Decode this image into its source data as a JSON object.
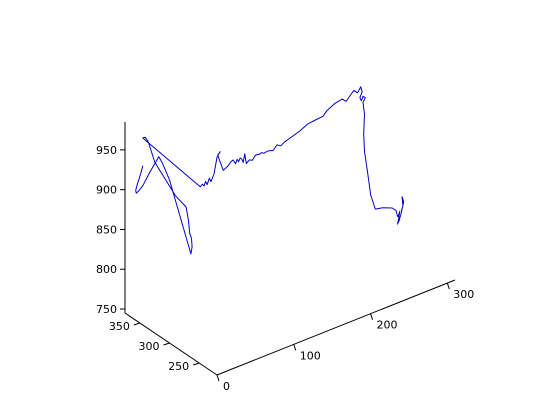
{
  "chart_data": {
    "type": "line",
    "projection": "3d",
    "title": "",
    "xlabel": "",
    "ylabel": "",
    "zlabel": "",
    "grid": false,
    "xlim": [
      0,
      310
    ],
    "ylim": [
      220,
      375
    ],
    "zlim": [
      745,
      985
    ],
    "x_ticks": [
      0,
      100,
      200,
      300
    ],
    "x_tick_labels": [
      "0",
      "100",
      "200",
      "300"
    ],
    "y_ticks": [
      250,
      300,
      350
    ],
    "y_tick_labels": [
      "250",
      "300",
      "350"
    ],
    "z_ticks": [
      750,
      800,
      850,
      900,
      950
    ],
    "z_tick_labels": [
      "750",
      "800",
      "850",
      "900",
      "950"
    ],
    "series": [
      {
        "color": "#0000cc",
        "points": [
          [
            302,
            300,
            795
          ],
          [
            304,
            300,
            800
          ],
          [
            303,
            300,
            812
          ],
          [
            305,
            300,
            805
          ],
          [
            301,
            300,
            789
          ],
          [
            298,
            300,
            783
          ],
          [
            300,
            300,
            795
          ],
          [
            298,
            300,
            790
          ],
          [
            300,
            300,
            785
          ],
          [
            297,
            300,
            780
          ],
          [
            299,
            300,
            788
          ],
          [
            297,
            300,
            790
          ],
          [
            295,
            300,
            798
          ],
          [
            290,
            300,
            803
          ],
          [
            278,
            300,
            808
          ],
          [
            268,
            300,
            810
          ],
          [
            262,
            300,
            830
          ],
          [
            258,
            300,
            860
          ],
          [
            254,
            300,
            888
          ],
          [
            253,
            300,
            910
          ],
          [
            254,
            300,
            935
          ],
          [
            252,
            300,
            950
          ],
          [
            255,
            300,
            955
          ],
          [
            252,
            300,
            958
          ],
          [
            250,
            300,
            953
          ],
          [
            248,
            300,
            958
          ],
          [
            251,
            300,
            964
          ],
          [
            249,
            300,
            971
          ],
          [
            245,
            300,
            965
          ],
          [
            240,
            300,
            970
          ],
          [
            230,
            300,
            960
          ],
          [
            225,
            300,
            965
          ],
          [
            215,
            300,
            963
          ],
          [
            205,
            300,
            958
          ],
          [
            200,
            300,
            953
          ],
          [
            190,
            300,
            952
          ],
          [
            180,
            300,
            951
          ],
          [
            170,
            300,
            946
          ],
          [
            160,
            300,
            943
          ],
          [
            150,
            300,
            940
          ],
          [
            145,
            300,
            937
          ],
          [
            140,
            300,
            940
          ],
          [
            135,
            300,
            935
          ],
          [
            128,
            300,
            937
          ],
          [
            123,
            300,
            936
          ],
          [
            120,
            300,
            938
          ],
          [
            117,
            300,
            937
          ],
          [
            112,
            300,
            938
          ],
          [
            108,
            300,
            933
          ],
          [
            104,
            300,
            935
          ],
          [
            100,
            300,
            932
          ],
          [
            98,
            300,
            945
          ],
          [
            96,
            300,
            935
          ],
          [
            94,
            300,
            940
          ],
          [
            92,
            300,
            942
          ],
          [
            90,
            300,
            938
          ],
          [
            88,
            300,
            942
          ],
          [
            86,
            300,
            937
          ],
          [
            83,
            300,
            943
          ],
          [
            80,
            300,
            942
          ],
          [
            76,
            300,
            938
          ],
          [
            70,
            300,
            935
          ],
          [
            65,
            300,
            950
          ],
          [
            63,
            300,
            957
          ],
          [
            66,
            300,
            960
          ],
          [
            62,
            300,
            955
          ],
          [
            58,
            300,
            935
          ],
          [
            54,
            300,
            927
          ],
          [
            52,
            300,
            932
          ],
          [
            49,
            300,
            925
          ],
          [
            47,
            300,
            930
          ],
          [
            45,
            300,
            925
          ],
          [
            43,
            300,
            928
          ],
          [
            40,
            300,
            926
          ],
          [
            0,
            345,
            980
          ],
          [
            0,
            341,
            983
          ],
          [
            0,
            336,
            980
          ],
          [
            0,
            325,
            960
          ],
          [
            0,
            318,
            955
          ],
          [
            0,
            290,
            935
          ],
          [
            0,
            272,
            930
          ],
          [
            0,
            268,
            915
          ],
          [
            0,
            266,
            900
          ],
          [
            0,
            263,
            895
          ],
          [
            0,
            262,
            885
          ],
          [
            0,
            263,
            880
          ],
          [
            0,
            264,
            875
          ],
          [
            0,
            300,
            950
          ],
          [
            0,
            312,
            965
          ],
          [
            0,
            318,
            970
          ],
          [
            0,
            332,
            945
          ],
          [
            0,
            345,
            920
          ],
          [
            0,
            352,
            910
          ],
          [
            0,
            356,
            905
          ],
          [
            0,
            357,
            908
          ],
          [
            0,
            355,
            915
          ],
          [
            0,
            348,
            935
          ],
          [
            0,
            345,
            945
          ]
        ]
      }
    ]
  }
}
